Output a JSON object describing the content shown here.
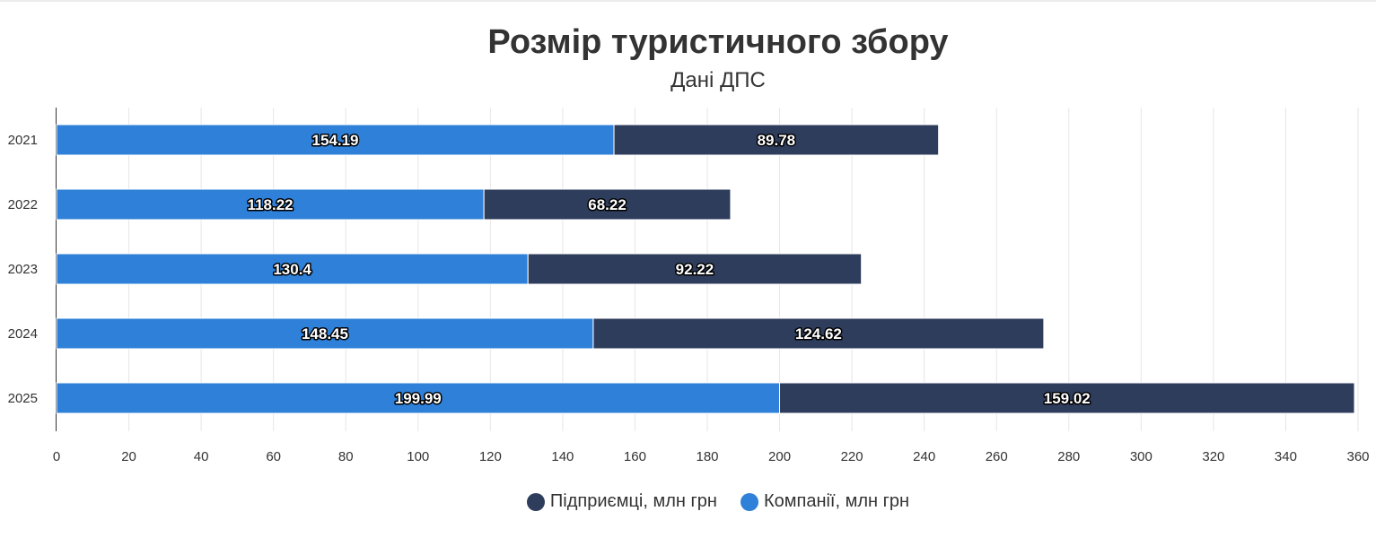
{
  "chart_data": {
    "type": "bar",
    "orientation": "horizontal",
    "stacked": true,
    "title": "Розмір туристичного збору",
    "subtitle": "Дані ДПС",
    "categories": [
      "2021",
      "2022",
      "2023",
      "2024",
      "2025"
    ],
    "series": [
      {
        "name": "Компанії, млн грн",
        "color": "#2f80d9",
        "values": [
          154.19,
          118.22,
          130.4,
          148.45,
          199.99
        ]
      },
      {
        "name": "Підприємці, млн грн",
        "color": "#2f3d5c",
        "values": [
          89.78,
          68.22,
          92.22,
          124.62,
          159.02
        ]
      }
    ],
    "xlim": [
      0,
      360
    ],
    "xticks": [
      0,
      20,
      40,
      60,
      80,
      100,
      120,
      140,
      160,
      180,
      200,
      220,
      240,
      260,
      280,
      300,
      320,
      340,
      360
    ],
    "grid": true,
    "data_labels": true,
    "legend": {
      "position": "bottom",
      "order": [
        "Підприємці, млн грн",
        "Компанії, млн грн"
      ]
    }
  }
}
